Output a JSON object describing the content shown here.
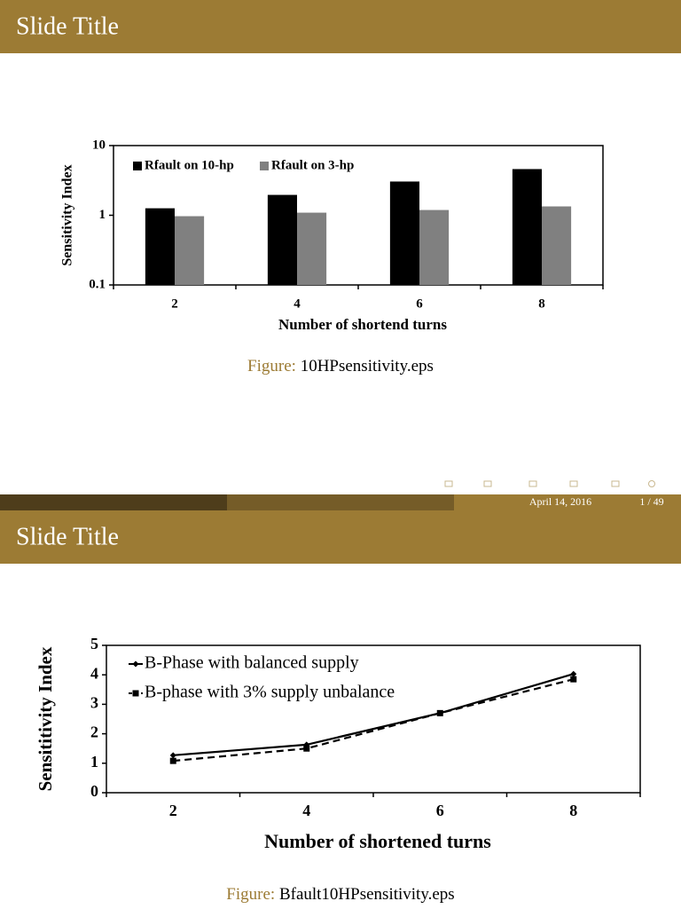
{
  "slides": [
    {
      "title": "Slide Title",
      "caption_label": "Figure:",
      "caption": "10HPsensitivity.eps",
      "footer": {
        "date": "April 14, 2016",
        "page": "1 / 49"
      }
    },
    {
      "title": "Slide Title",
      "caption_label": "Figure:",
      "caption": "Bfault10HPsensitivity.eps"
    }
  ],
  "chart_data": [
    {
      "type": "bar",
      "xlabel": "Number of shortend turns",
      "ylabel": "Sensitivity Index",
      "categories": [
        "2",
        "4",
        "6",
        "8"
      ],
      "log_y": true,
      "ylim": [
        0.1,
        10
      ],
      "yticks": [
        0.1,
        1,
        10
      ],
      "legend": "upper left",
      "series": [
        {
          "name": "Rfault on 10-hp",
          "color": "#000000",
          "values": [
            1.26,
            1.96,
            3.05,
            4.6
          ]
        },
        {
          "name": "Rfault on 3-hp",
          "color": "#808080",
          "values": [
            0.97,
            1.09,
            1.19,
            1.34
          ]
        }
      ]
    },
    {
      "type": "line",
      "xlabel": "Number of shortened turns",
      "ylabel": "Sensititivity  Index",
      "categories": [
        "2",
        "4",
        "6",
        "8"
      ],
      "ylim": [
        0,
        5
      ],
      "yticks": [
        0,
        1,
        2,
        3,
        4,
        5
      ],
      "legend": "upper left",
      "series": [
        {
          "name": "B-Phase with balanced supply",
          "color": "#000000",
          "dash": "solid",
          "marker": "diamond",
          "values": [
            1.27,
            1.63,
            2.7,
            4.03
          ]
        },
        {
          "name": "B-phase with 3% supply unbalance",
          "color": "#000000",
          "dash": "dashed",
          "marker": "square",
          "values": [
            1.08,
            1.5,
            2.7,
            3.85
          ]
        }
      ]
    }
  ]
}
